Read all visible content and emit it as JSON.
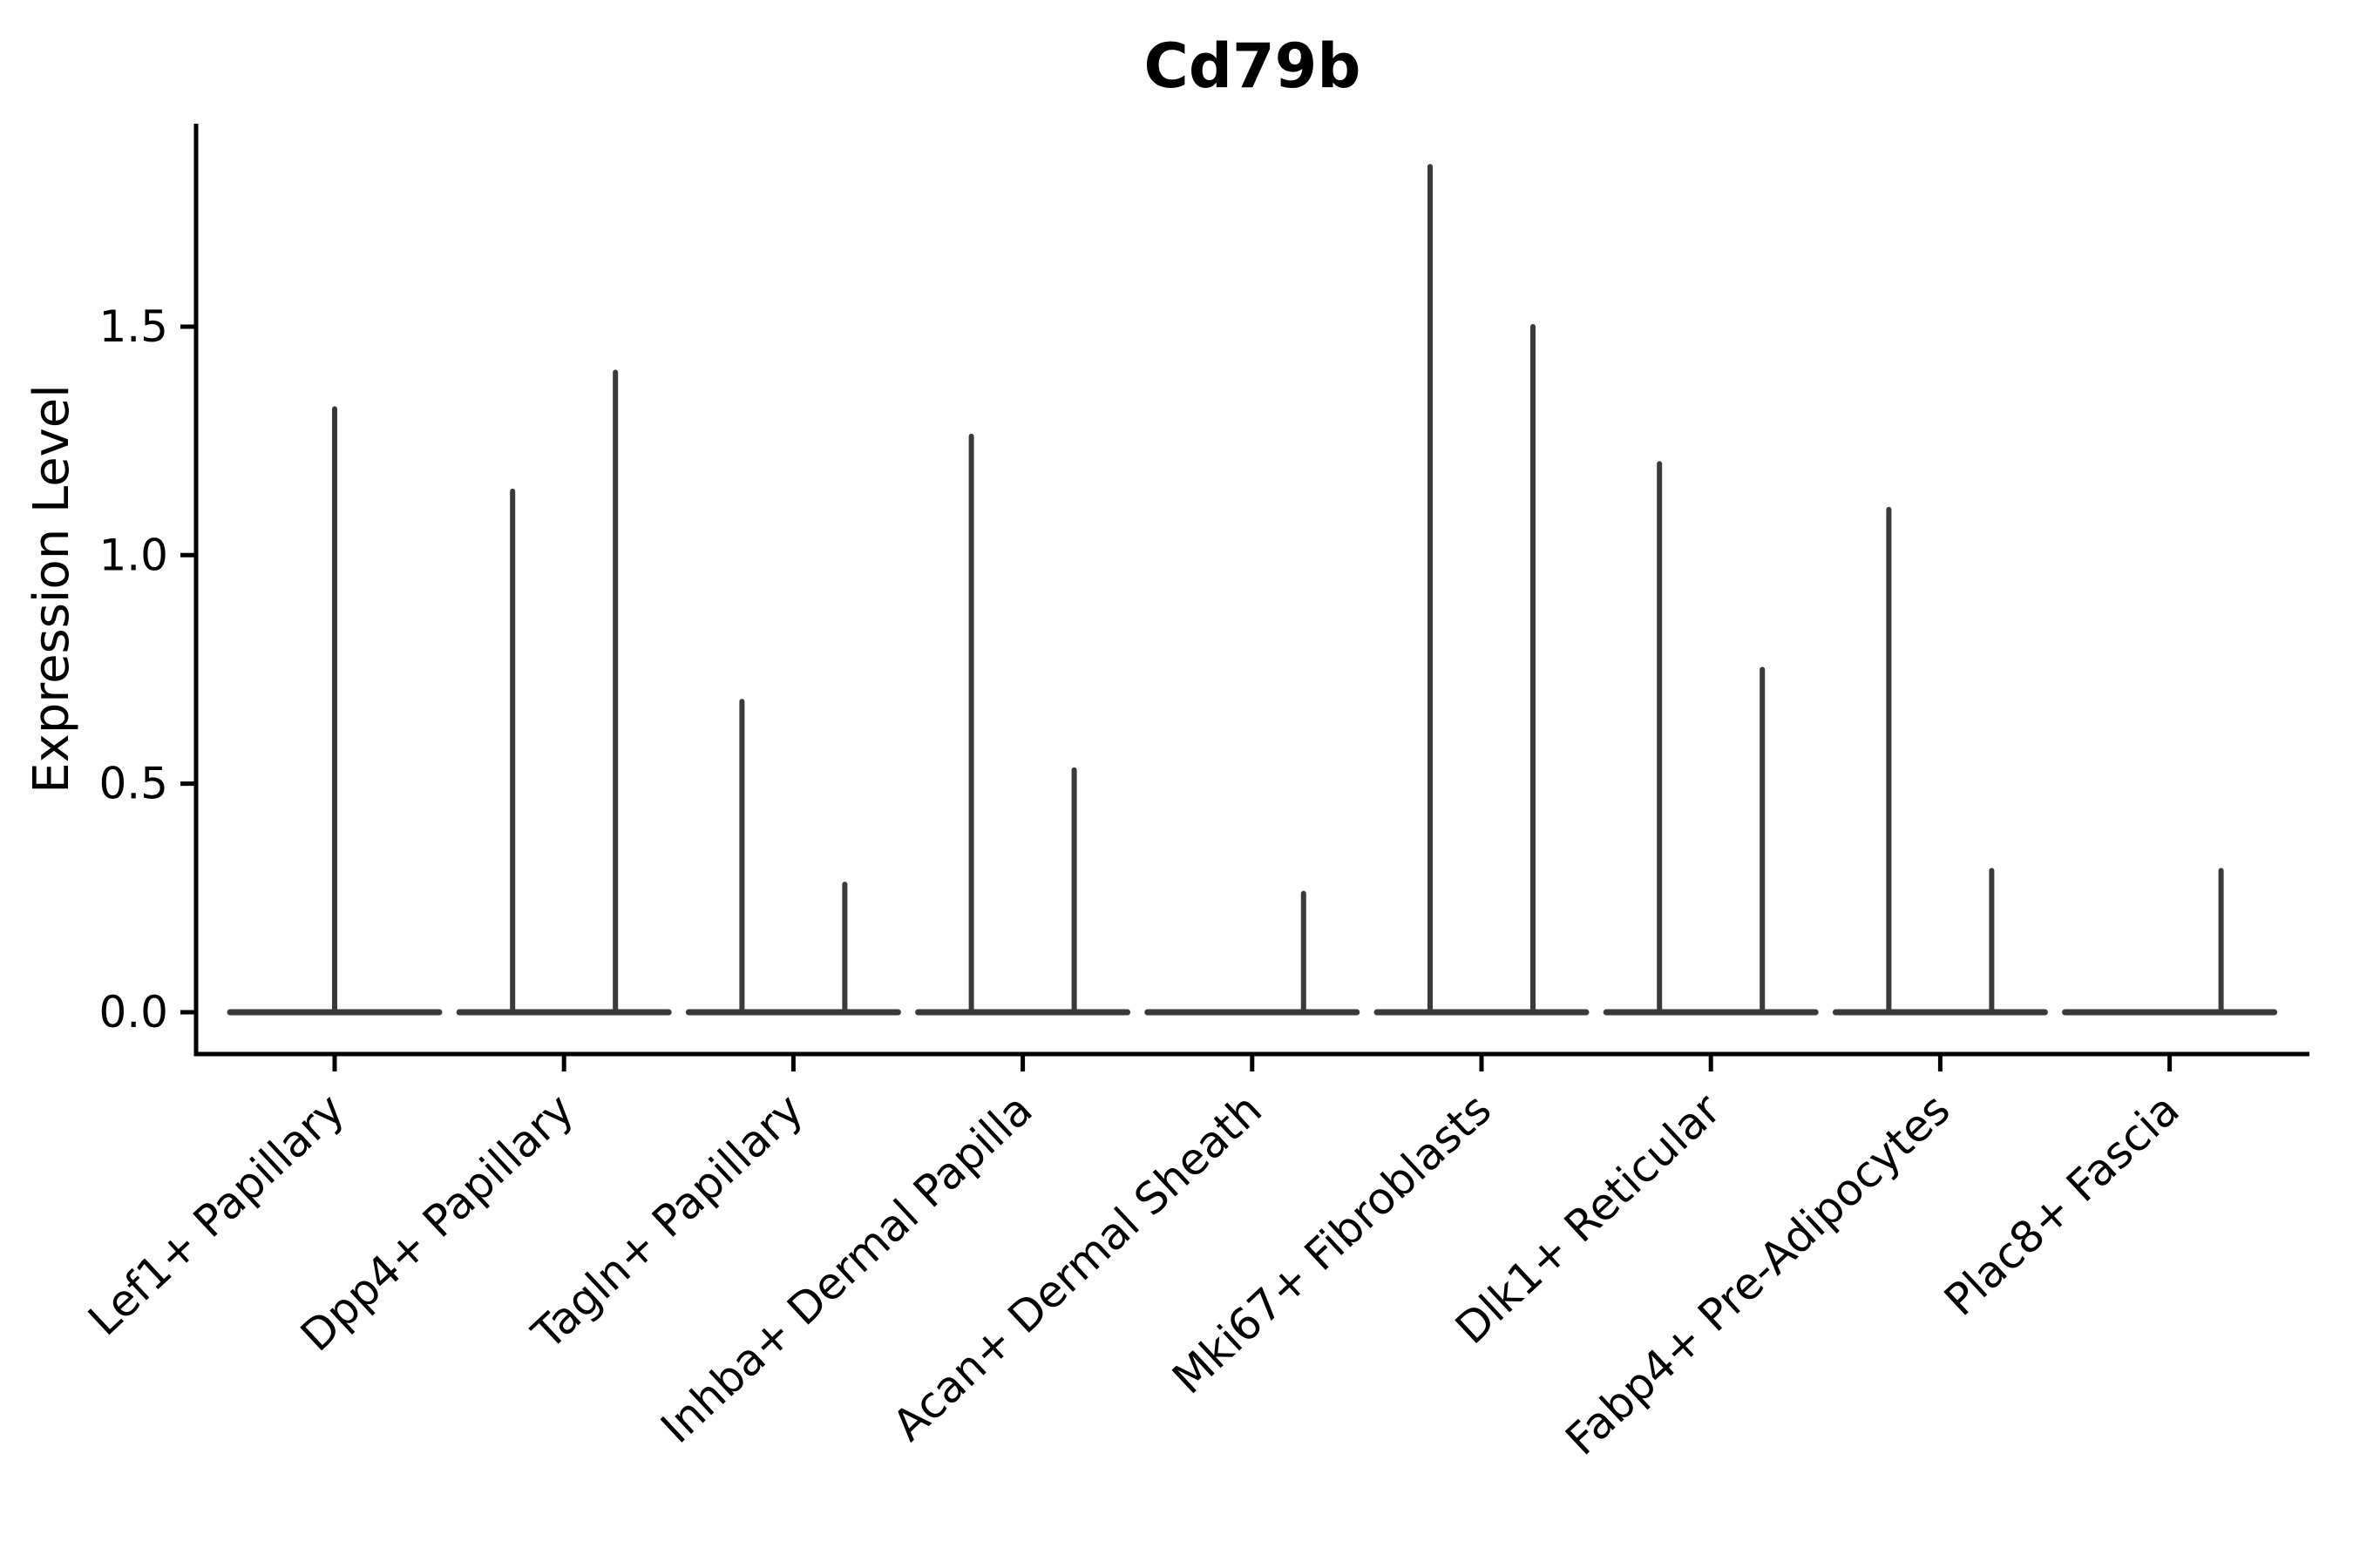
{
  "page": {
    "background": "#ffffff"
  },
  "chart_data": {
    "type": "violin",
    "title": "Cd79b",
    "ylabel": "Expression Level",
    "xlabel": "",
    "ytick_labels": [
      "0.0",
      "0.5",
      "1.0",
      "1.5"
    ],
    "ytick_values": [
      0.0,
      0.5,
      1.0,
      1.5
    ],
    "ylim": [
      -0.09,
      1.94
    ],
    "grid": false,
    "legend": "none",
    "categories": [
      "Lef1+ Papillary",
      "Dpp4+ Papillary",
      "Tagln+ Papillary",
      "Inhba+ Dermal Papilla",
      "Acan+ Dermal Sheath",
      "Mki67+ Fibroblasts",
      "Dlk1+ Reticular",
      "Fabp4+ Pre-Adipocytes",
      "Plac8+ Fascia"
    ],
    "baseline_value": 0.0,
    "violins": [
      {
        "category": "Lef1+ Papillary",
        "spikes": [
          {
            "position": "center",
            "max": 1.32
          }
        ]
      },
      {
        "category": "Dpp4+ Papillary",
        "spikes": [
          {
            "position": "left",
            "max": 1.14
          },
          {
            "position": "right",
            "max": 1.4
          }
        ]
      },
      {
        "category": "Tagln+ Papillary",
        "spikes": [
          {
            "position": "left",
            "max": 0.68
          },
          {
            "position": "right",
            "max": 0.28
          }
        ]
      },
      {
        "category": "Inhba+ Dermal Papilla",
        "spikes": [
          {
            "position": "left",
            "max": 1.26
          },
          {
            "position": "right",
            "max": 0.53
          }
        ]
      },
      {
        "category": "Acan+ Dermal Sheath",
        "spikes": [
          {
            "position": "right",
            "max": 0.26
          }
        ]
      },
      {
        "category": "Mki67+ Fibroblasts",
        "spikes": [
          {
            "position": "left",
            "max": 1.85
          },
          {
            "position": "right",
            "max": 1.5
          }
        ]
      },
      {
        "category": "Dlk1+ Reticular",
        "spikes": [
          {
            "position": "left",
            "max": 1.2
          },
          {
            "position": "right",
            "max": 0.75
          }
        ]
      },
      {
        "category": "Fabp4+ Pre-Adipocytes",
        "spikes": [
          {
            "position": "left",
            "max": 1.1
          },
          {
            "position": "right",
            "max": 0.31
          }
        ]
      },
      {
        "category": "Plac8+ Fascia",
        "spikes": [
          {
            "position": "right",
            "max": 0.31
          }
        ]
      }
    ],
    "colors": {
      "ink": "#000000",
      "violin": "#3a3a3a",
      "background": "#ffffff"
    }
  }
}
